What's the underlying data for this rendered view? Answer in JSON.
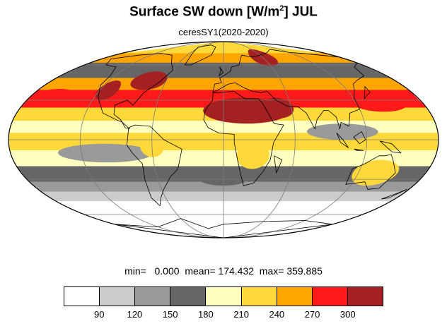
{
  "title": "Surface SW down [W/m",
  "title_sup": "2",
  "title_tail": "]  JUL",
  "subtitle": "ceresSY1(2020-2020)",
  "stats": {
    "min_label": "min=",
    "min": "0.000",
    "mean_label": "mean=",
    "mean": "174.432",
    "max_label": "max=",
    "max": "359.885"
  },
  "legend": {
    "colors": [
      "#ffffff",
      "#cccccc",
      "#9a9a9a",
      "#666666",
      "#ffffc0",
      "#ffd93a",
      "#ffa500",
      "#ff1a1a",
      "#a52020"
    ],
    "ticks": [
      "90",
      "120",
      "150",
      "180",
      "210",
      "240",
      "270",
      "300"
    ]
  },
  "map": {
    "projection": "mollweide",
    "land_color": "#000000",
    "grid_color": "#7a7a7a",
    "bands": [
      {
        "lat_max": 90,
        "lat_min": 72,
        "color": "#ffd93a"
      },
      {
        "lat_max": 72,
        "lat_min": 62,
        "color": "#ffa500"
      },
      {
        "lat_max": 62,
        "lat_min": 48,
        "color": "#666666"
      },
      {
        "lat_max": 48,
        "lat_min": 38,
        "color": "#ffa500"
      },
      {
        "lat_max": 38,
        "lat_min": 24,
        "color": "#ff1a1a"
      },
      {
        "lat_max": 24,
        "lat_min": 14,
        "color": "#ffd93a"
      },
      {
        "lat_max": 14,
        "lat_min": 5,
        "color": "#ffffc0"
      },
      {
        "lat_max": 5,
        "lat_min": -8,
        "color": "#ffd93a"
      },
      {
        "lat_max": -8,
        "lat_min": -20,
        "color": "#ffffc0"
      },
      {
        "lat_max": -20,
        "lat_min": -32,
        "color": "#666666"
      },
      {
        "lat_max": -32,
        "lat_min": -40,
        "color": "#9a9a9a"
      },
      {
        "lat_max": -40,
        "lat_min": -48,
        "color": "#cccccc"
      },
      {
        "lat_max": -48,
        "lat_min": -90,
        "color": "#ffffff"
      }
    ],
    "blobs": [
      {
        "lon": 20,
        "lat": 22,
        "rlon": 38,
        "rlat": 10,
        "color": "#a52020"
      },
      {
        "lon": 48,
        "lat": 24,
        "rlon": 14,
        "rlat": 8,
        "color": "#a52020"
      },
      {
        "lon": -112,
        "lat": 38,
        "rlon": 10,
        "rlat": 8,
        "color": "#a52020"
      },
      {
        "lon": -78,
        "lat": 46,
        "rlon": 18,
        "rlat": 8,
        "color": "#a52020"
      },
      {
        "lon": 60,
        "lat": 68,
        "rlon": 18,
        "rlat": 9,
        "color": "#a52020"
      },
      {
        "lon": -160,
        "lat": 32,
        "rlon": 22,
        "rlat": 7,
        "color": "#ff1a1a"
      },
      {
        "lon": 140,
        "lat": 28,
        "rlon": 25,
        "rlat": 7,
        "color": "#ff1a1a"
      },
      {
        "lon": 100,
        "lat": 6,
        "rlon": 30,
        "rlat": 6,
        "color": "#9a9a9a"
      },
      {
        "lon": -100,
        "lat": -10,
        "rlon": 40,
        "rlat": 7,
        "color": "#9a9a9a"
      },
      {
        "lon": 25,
        "lat": -12,
        "rlon": 14,
        "rlat": 10,
        "color": "#ffd93a"
      },
      {
        "lon": 135,
        "lat": -25,
        "rlon": 20,
        "rlat": 10,
        "color": "#ffd93a"
      },
      {
        "lon": -60,
        "lat": -5,
        "rlon": 10,
        "rlat": 8,
        "color": "#ffd93a"
      },
      {
        "lon": 0,
        "lat": -30,
        "rlon": 22,
        "rlat": 5,
        "color": "#666666"
      }
    ],
    "land": [
      [
        [
          -166,
          66
        ],
        [
          -140,
          70
        ],
        [
          -110,
          72
        ],
        [
          -85,
          70
        ],
        [
          -70,
          62
        ],
        [
          -60,
          55
        ],
        [
          -66,
          45
        ],
        [
          -76,
          36
        ],
        [
          -81,
          26
        ],
        [
          -88,
          30
        ],
        [
          -97,
          26
        ],
        [
          -95,
          19
        ],
        [
          -88,
          15
        ],
        [
          -83,
          9
        ],
        [
          -79,
          8
        ],
        [
          -86,
          13
        ],
        [
          -92,
          15
        ],
        [
          -105,
          20
        ],
        [
          -113,
          29
        ],
        [
          -117,
          33
        ],
        [
          -124,
          42
        ],
        [
          -125,
          50
        ],
        [
          -134,
          58
        ],
        [
          -152,
          60
        ],
        [
          -166,
          66
        ]
      ],
      [
        [
          -80,
          9
        ],
        [
          -75,
          11
        ],
        [
          -62,
          10
        ],
        [
          -50,
          0
        ],
        [
          -35,
          -7
        ],
        [
          -40,
          -22
        ],
        [
          -48,
          -28
        ],
        [
          -58,
          -38
        ],
        [
          -65,
          -45
        ],
        [
          -72,
          -52
        ],
        [
          -75,
          -45
        ],
        [
          -72,
          -30
        ],
        [
          -70,
          -18
        ],
        [
          -77,
          -10
        ],
        [
          -81,
          -4
        ],
        [
          -80,
          9
        ]
      ],
      [
        [
          -10,
          36
        ],
        [
          -5,
          36
        ],
        [
          10,
          37
        ],
        [
          20,
          31
        ],
        [
          32,
          31
        ],
        [
          35,
          28
        ],
        [
          43,
          12
        ],
        [
          51,
          11
        ],
        [
          42,
          -2
        ],
        [
          40,
          -15
        ],
        [
          35,
          -24
        ],
        [
          28,
          -33
        ],
        [
          19,
          -35
        ],
        [
          15,
          -25
        ],
        [
          12,
          -15
        ],
        [
          9,
          -2
        ],
        [
          9,
          4
        ],
        [
          -4,
          5
        ],
        [
          -13,
          9
        ],
        [
          -17,
          15
        ],
        [
          -16,
          22
        ],
        [
          -10,
          30
        ],
        [
          -10,
          36
        ]
      ],
      [
        [
          -10,
          36
        ],
        [
          -9,
          43
        ],
        [
          -2,
          44
        ],
        [
          -4,
          48
        ],
        [
          2,
          51
        ],
        [
          8,
          54
        ],
        [
          10,
          58
        ],
        [
          20,
          60
        ],
        [
          25,
          66
        ],
        [
          30,
          70
        ],
        [
          45,
          68
        ],
        [
          60,
          70
        ],
        [
          80,
          73
        ],
        [
          100,
          77
        ],
        [
          120,
          73
        ],
        [
          140,
          72
        ],
        [
          160,
          70
        ],
        [
          180,
          68
        ],
        [
          180,
          62
        ],
        [
          163,
          58
        ],
        [
          155,
          50
        ],
        [
          140,
          46
        ],
        [
          132,
          43
        ],
        [
          127,
          38
        ],
        [
          121,
          32
        ],
        [
          120,
          23
        ],
        [
          110,
          20
        ],
        [
          106,
          10
        ],
        [
          100,
          13
        ],
        [
          98,
          8
        ],
        [
          97,
          17
        ],
        [
          92,
          22
        ],
        [
          88,
          22
        ],
        [
          80,
          15
        ],
        [
          77,
          8
        ],
        [
          72,
          20
        ],
        [
          66,
          25
        ],
        [
          57,
          25
        ],
        [
          52,
          28
        ],
        [
          48,
          30
        ],
        [
          42,
          37
        ],
        [
          36,
          36
        ],
        [
          28,
          37
        ],
        [
          20,
          40
        ],
        [
          12,
          44
        ],
        [
          5,
          43
        ],
        [
          -10,
          36
        ]
      ],
      [
        [
          113,
          -22
        ],
        [
          122,
          -18
        ],
        [
          132,
          -12
        ],
        [
          137,
          -12
        ],
        [
          142,
          -11
        ],
        [
          145,
          -15
        ],
        [
          153,
          -25
        ],
        [
          150,
          -37
        ],
        [
          140,
          -38
        ],
        [
          131,
          -32
        ],
        [
          115,
          -34
        ],
        [
          113,
          -22
        ]
      ],
      [
        [
          -50,
          60
        ],
        [
          -42,
          60
        ],
        [
          -20,
          70
        ],
        [
          -20,
          80
        ],
        [
          -40,
          83
        ],
        [
          -65,
          80
        ],
        [
          -55,
          72
        ],
        [
          -50,
          60
        ]
      ],
      [
        [
          -180,
          -70
        ],
        [
          -120,
          -73
        ],
        [
          -60,
          -64
        ],
        [
          -30,
          -75
        ],
        [
          0,
          -70
        ],
        [
          60,
          -67
        ],
        [
          120,
          -66
        ],
        [
          180,
          -70
        ],
        [
          180,
          -90
        ],
        [
          -180,
          -90
        ],
        [
          -180,
          -70
        ]
      ],
      [
        [
          95,
          5
        ],
        [
          100,
          0
        ],
        [
          105,
          -6
        ],
        [
          98,
          -2
        ],
        [
          95,
          5
        ]
      ],
      [
        [
          110,
          -7
        ],
        [
          118,
          -8
        ],
        [
          112,
          -8
        ],
        [
          110,
          -7
        ]
      ],
      [
        [
          109,
          2
        ],
        [
          116,
          6
        ],
        [
          119,
          0
        ],
        [
          114,
          -3
        ],
        [
          109,
          2
        ]
      ],
      [
        [
          131,
          -1
        ],
        [
          141,
          -3
        ],
        [
          150,
          -10
        ],
        [
          142,
          -9
        ],
        [
          131,
          -1
        ]
      ],
      [
        [
          130,
          31
        ],
        [
          135,
          34
        ],
        [
          140,
          36
        ],
        [
          141,
          41
        ],
        [
          136,
          37
        ],
        [
          130,
          31
        ]
      ],
      [
        [
          -5,
          50
        ],
        [
          -3,
          55
        ],
        [
          -5,
          58
        ],
        [
          0,
          53
        ],
        [
          -5,
          50
        ]
      ],
      [
        [
          43,
          -12
        ],
        [
          50,
          -15
        ],
        [
          47,
          -25
        ],
        [
          43,
          -12
        ]
      ],
      [
        [
          166,
          -46
        ],
        [
          174,
          -41
        ],
        [
          178,
          -38
        ],
        [
          172,
          -45
        ],
        [
          166,
          -46
        ]
      ]
    ],
    "meridians": [
      -180,
      -120,
      -60,
      0,
      60,
      120,
      180
    ],
    "parallels": [
      -60,
      -30,
      0,
      30,
      60
    ]
  }
}
